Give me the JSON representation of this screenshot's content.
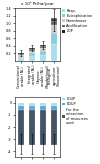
{
  "chart_data": [
    {
      "type": "bar",
      "stacked": true,
      "title": "x 10³ Pt/ha/year",
      "categories": [
        "Conventional\narable (NL)",
        "Integrated\narable (NL)",
        "Organic\narable (NL)\n(Minderhoud)",
        "Biological\nagriculture\n(Beusmann)"
      ],
      "series": [
        {
          "name": "Resp.",
          "color": "#aaddee",
          "values": [
            0.06,
            0.12,
            0.15,
            0.45
          ]
        },
        {
          "name": "Eutrophication",
          "color": "#88ccdd",
          "values": [
            0.05,
            0.08,
            0.1,
            0.28
          ]
        },
        {
          "name": "Greenhouse",
          "color": "#cccccc",
          "values": [
            0.04,
            0.07,
            0.09,
            0.22
          ]
        },
        {
          "name": "Acidification",
          "color": "#666666",
          "values": [
            0.03,
            0.05,
            0.06,
            0.12
          ]
        },
        {
          "name": "LOP",
          "color": "#222222",
          "values": [
            0.02,
            0.02,
            0.02,
            0.05
          ]
        },
        {
          "color": "#444444",
          "values": [
            null,
            null,
            null,
            0.03
          ]
        }
      ],
      "error_low": [
        0.12,
        0.25,
        0.32,
        0.8
      ],
      "error_high": [
        0.28,
        0.43,
        0.52,
        1.38
      ],
      "ylim": [
        0,
        1.4
      ],
      "yticks": [
        0.2,
        0.4,
        0.6,
        0.8,
        {
          "value": 1,
          "label": "1.0"
        },
        1.2,
        1.4
      ],
      "legend": "upper left"
    },
    {
      "type": "bar",
      "stacked": true,
      "categories": [
        null,
        null,
        null,
        null
      ],
      "series": [
        {
          "name": "LOUP",
          "color": "#aaddee",
          "values": [
            -0.25,
            -0.25,
            -0.25,
            -0.25
          ]
        },
        {
          "name": "EOUP",
          "color": "#55aacc",
          "values": [
            -0.35,
            -0.35,
            -0.35,
            -0.35
          ]
        },
        {
          "name": "For the\nextraction\nof resources\nused",
          "color": "#445566",
          "values": [
            -2.9,
            -2.9,
            -2.9,
            -2.9
          ]
        }
      ],
      "error_low": [
        -4.2,
        -4.2,
        -4.2,
        -4.2
      ],
      "error_high": [
        -2.6,
        -2.6,
        -2.6,
        -2.6
      ],
      "ylim": [
        -4.5,
        0.5
      ],
      "yticks": [
        -4,
        -3,
        -2,
        -1,
        0
      ],
      "legend": "upper left"
    }
  ]
}
